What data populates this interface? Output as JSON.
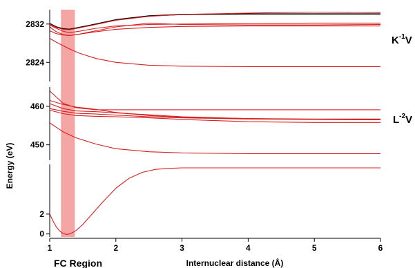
{
  "chart_data": {
    "type": "line",
    "title": "",
    "xlabel": "Internuclear distance (Å)",
    "ylabel": "Energy (eV)",
    "xlim": [
      1,
      6
    ],
    "x_ticks": [
      "1",
      "2",
      "3",
      "4",
      "5",
      "6"
    ],
    "highlight": {
      "label": "FC Region",
      "x_range": [
        1.17,
        1.38
      ],
      "color": "#f6a5a5"
    },
    "colors": {
      "curve": "#d62020",
      "highlight_curve": "#000000",
      "axis": "#000000"
    },
    "panels": [
      {
        "name": "K⁻¹V",
        "label": {
          "main": "K",
          "sup": "-1",
          "tail": "V"
        },
        "ylim": [
          2820,
          2835
        ],
        "y_ticks": [
          {
            "label": "2824",
            "value": 2824
          },
          {
            "label": "2832",
            "value": 2832
          }
        ],
        "series": [
          {
            "x": [
              1,
              1.1,
              1.2,
              1.3,
              1.45,
              1.7,
              2.0,
              2.5,
              3.0,
              4.0,
              5.0,
              6.0
            ],
            "values": [
              2832.1,
              2831.4,
              2831.0,
              2830.9,
              2831.3,
              2832.0,
              2832.9,
              2833.7,
              2834.0,
              2834.1,
              2834.1,
              2834.1
            ],
            "color": "#000000"
          },
          {
            "x": [
              1,
              1.1,
              1.2,
              1.3,
              1.45,
              1.7,
              2.0,
              2.5,
              3.0,
              4.0,
              5.0,
              6.0
            ],
            "values": [
              2832.0,
              2831.3,
              2830.9,
              2830.8,
              2831.2,
              2831.9,
              2832.8,
              2833.6,
              2834.0,
              2834.3,
              2834.5,
              2834.4
            ],
            "color": "#d62020"
          },
          {
            "x": [
              1,
              1.1,
              1.2,
              1.3,
              1.45,
              1.7,
              2.0,
              2.5,
              3.0,
              4.0,
              5.0,
              6.0
            ],
            "values": [
              2831.8,
              2831.1,
              2830.5,
              2830.2,
              2830.5,
              2831.1,
              2831.6,
              2831.9,
              2832.0,
              2832.1,
              2832.2,
              2832.2
            ],
            "color": "#d62020"
          },
          {
            "x": [
              1,
              1.1,
              1.2,
              1.3,
              1.45,
              1.7,
              2.0,
              2.5,
              3.0,
              4.0,
              5.0,
              6.0
            ],
            "values": [
              2831.4,
              2830.4,
              2829.8,
              2829.6,
              2829.9,
              2830.6,
              2831.4,
              2832.2,
              2831.9,
              2831.8,
              2831.8,
              2831.9
            ],
            "color": "#d62020"
          },
          {
            "x": [
              1,
              1.1,
              1.2,
              1.3,
              1.45,
              1.7,
              2.0,
              2.5,
              3.0,
              4.0,
              5.0,
              6.0
            ],
            "values": [
              2830.6,
              2830.0,
              2829.7,
              2829.6,
              2829.9,
              2830.4,
              2830.9,
              2831.3,
              2831.5,
              2831.6,
              2831.6,
              2831.6
            ],
            "color": "#d62020"
          },
          {
            "x": [
              1,
              1.1,
              1.2,
              1.3,
              1.45,
              1.7,
              2.0,
              2.5,
              3.0,
              4.0,
              5.0,
              6.0
            ],
            "values": [
              2829.0,
              2828.2,
              2827.5,
              2826.8,
              2825.9,
              2824.8,
              2824.0,
              2823.4,
              2823.2,
              2823.1,
              2823.1,
              2823.1
            ],
            "color": "#d62020"
          }
        ]
      },
      {
        "name": "L⁻²V",
        "label": {
          "main": "L",
          "sup": "-2",
          "tail": "V"
        },
        "ylim": [
          446,
          465
        ],
        "y_ticks": [
          {
            "label": "450",
            "value": 450
          },
          {
            "label": "460",
            "value": 460
          }
        ],
        "series": [
          {
            "x": [
              1,
              1.2,
              1.4,
              1.7,
              2.0,
              2.5,
              3.0,
              4.0,
              5.0,
              6.0
            ],
            "values": [
              464.0,
              460.8,
              459.6,
              459.1,
              459.1,
              459.1,
              459.1,
              459.1,
              459.1,
              459.1
            ],
            "color": "#d62020"
          },
          {
            "x": [
              1,
              1.2,
              1.4,
              1.7,
              2.0,
              2.5,
              3.0,
              4.0,
              5.0,
              6.0
            ],
            "values": [
              461.5,
              460.5,
              459.8,
              459.2,
              458.4,
              457.6,
              457.1,
              456.8,
              456.7,
              456.7
            ],
            "color": "#d62020"
          },
          {
            "x": [
              1,
              1.2,
              1.4,
              1.7,
              2.0,
              2.5,
              3.0,
              4.0,
              5.0,
              6.0
            ],
            "values": [
              460.7,
              459.4,
              458.8,
              458.6,
              458.3,
              457.8,
              457.3,
              456.8,
              456.6,
              456.5
            ],
            "color": "#d62020"
          },
          {
            "x": [
              1,
              1.2,
              1.4,
              1.7,
              2.0,
              2.5,
              3.0,
              4.0,
              5.0,
              6.0
            ],
            "values": [
              459.4,
              458.7,
              458.2,
              458.0,
              457.7,
              457.3,
              457.0,
              456.7,
              456.6,
              456.5
            ],
            "color": "#d62020"
          },
          {
            "x": [
              1,
              1.2,
              1.4,
              1.7,
              2.0,
              2.5,
              3.0,
              4.0,
              5.0,
              6.0
            ],
            "values": [
              459.0,
              458.1,
              457.6,
              457.4,
              457.3,
              457.0,
              456.6,
              456.0,
              455.8,
              455.8
            ],
            "color": "#d62020"
          },
          {
            "x": [
              1,
              1.2,
              1.4,
              1.7,
              2.0,
              2.5,
              3.0,
              4.0,
              5.0,
              6.0
            ],
            "values": [
              455.7,
              453.4,
              451.8,
              450.2,
              449.0,
              448.2,
              447.9,
              447.7,
              447.7,
              447.7
            ],
            "color": "#d62020"
          }
        ]
      },
      {
        "name": "",
        "label": null,
        "ylim": [
          -0.3,
          7
        ],
        "y_ticks": [
          {
            "label": "0",
            "value": 0
          },
          {
            "label": "2",
            "value": 2
          }
        ],
        "series": [
          {
            "x": [
              1,
              1.05,
              1.1,
              1.15,
              1.2,
              1.25,
              1.3,
              1.35,
              1.4,
              1.5,
              1.6,
              1.8,
              2.0,
              2.2,
              2.4,
              2.6,
              2.8,
              3.0,
              3.5,
              4.0,
              5.0,
              6.0
            ],
            "values": [
              2.0,
              1.3,
              0.7,
              0.3,
              0.05,
              -0.05,
              0.0,
              0.15,
              0.35,
              0.95,
              1.7,
              3.2,
              4.6,
              5.6,
              6.2,
              6.5,
              6.6,
              6.65,
              6.65,
              6.65,
              6.65,
              6.65
            ],
            "color": "#d62020"
          }
        ]
      }
    ]
  }
}
